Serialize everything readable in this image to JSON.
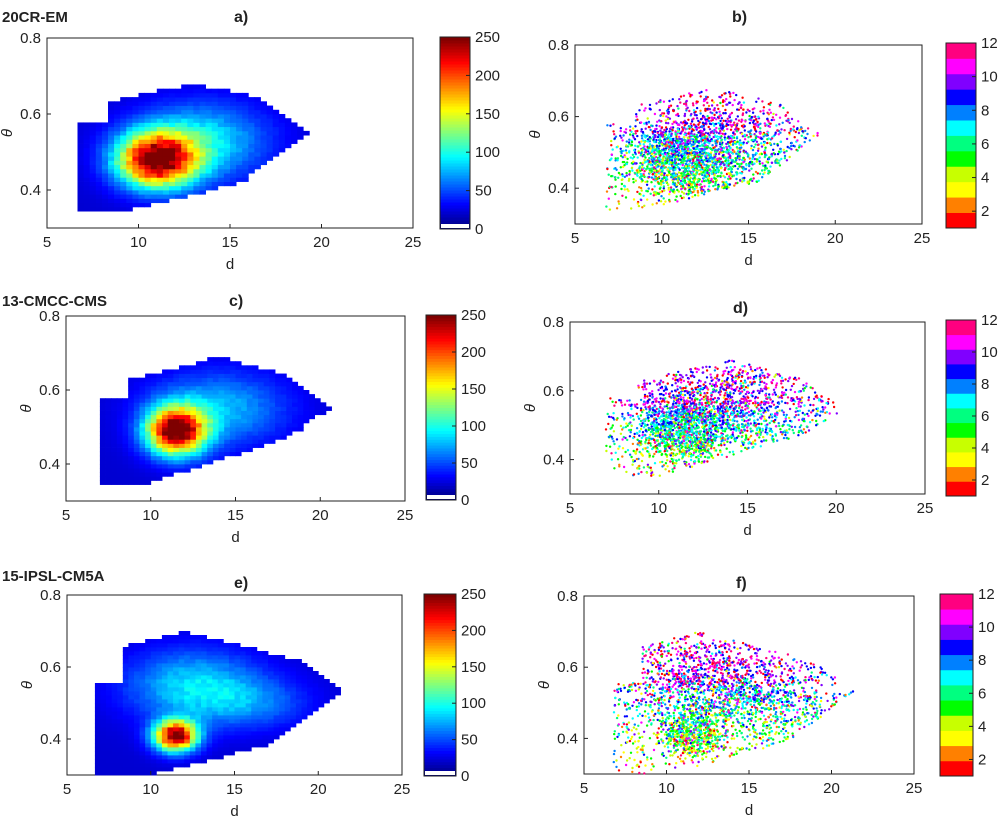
{
  "colors": {
    "cmap_heat": [
      "#00007F",
      "#0000FF",
      "#007FFF",
      "#00FFFF",
      "#7FFF7F",
      "#FFFF00",
      "#FF7F00",
      "#FF0000",
      "#7F0000"
    ],
    "cmap_month": [
      "#FF0000",
      "#FF8000",
      "#FFFF00",
      "#C8FF00",
      "#00FF00",
      "#00FF80",
      "#00FFFF",
      "#0080FF",
      "#0000FF",
      "#8000FF",
      "#FF00FF",
      "#FF0080"
    ]
  },
  "rows": [
    {
      "model_label": "20CR-EM",
      "density_peak": [
        11,
        0.48
      ]
    },
    {
      "model_label": "13-CMCC-CMS",
      "density_peak": [
        11.5,
        0.49
      ]
    },
    {
      "model_label": "15-IPSL-CM5A",
      "density_peak": [
        11.5,
        0.41
      ]
    }
  ],
  "chart_data": [
    {
      "id": "a",
      "panel_label": "a)",
      "type": "heatmap",
      "xlabel": "d",
      "ylabel": "θ",
      "xlim": [
        5,
        25
      ],
      "ylim": [
        0.3,
        0.8
      ],
      "xticks": [
        "5",
        "10",
        "15",
        "20",
        "25"
      ],
      "yticks": [
        "0.4",
        "0.6",
        "0.8"
      ],
      "colorbar": {
        "range": [
          0,
          250
        ],
        "ticks": [
          "0",
          "50",
          "100",
          "150",
          "200",
          "250"
        ]
      },
      "density_peak_count": 240
    },
    {
      "id": "b",
      "panel_label": "b)",
      "type": "scatter",
      "xlabel": "d",
      "ylabel": "θ",
      "xlim": [
        5,
        25
      ],
      "ylim": [
        0.3,
        0.8
      ],
      "xticks": [
        "5",
        "10",
        "15",
        "20",
        "25"
      ],
      "yticks": [
        "0.4",
        "0.6",
        "0.8"
      ],
      "colorbar": {
        "range": [
          1,
          12
        ],
        "ticks": [
          "2",
          "4",
          "6",
          "8",
          "10",
          "12"
        ]
      }
    },
    {
      "id": "c",
      "panel_label": "c)",
      "type": "heatmap",
      "xlabel": "d",
      "ylabel": "θ",
      "xlim": [
        5,
        25
      ],
      "ylim": [
        0.3,
        0.8
      ],
      "xticks": [
        "5",
        "10",
        "15",
        "20",
        "25"
      ],
      "yticks": [
        "0.4",
        "0.6",
        "0.8"
      ],
      "colorbar": {
        "range": [
          0,
          250
        ],
        "ticks": [
          "0",
          "50",
          "100",
          "150",
          "200",
          "250"
        ]
      },
      "density_peak_count": 250
    },
    {
      "id": "d",
      "panel_label": "d)",
      "type": "scatter",
      "xlabel": "d",
      "ylabel": "θ",
      "xlim": [
        5,
        25
      ],
      "ylim": [
        0.3,
        0.8
      ],
      "xticks": [
        "5",
        "10",
        "15",
        "20",
        "25"
      ],
      "yticks": [
        "0.4",
        "0.6",
        "0.8"
      ],
      "colorbar": {
        "range": [
          1,
          12
        ],
        "ticks": [
          "2",
          "4",
          "6",
          "8",
          "10",
          "12"
        ]
      }
    },
    {
      "id": "e",
      "panel_label": "e)",
      "type": "heatmap",
      "xlabel": "d",
      "ylabel": "θ",
      "xlim": [
        5,
        25
      ],
      "ylim": [
        0.3,
        0.8
      ],
      "xticks": [
        "5",
        "10",
        "15",
        "20",
        "25"
      ],
      "yticks": [
        "0.4",
        "0.6",
        "0.8"
      ],
      "colorbar": {
        "range": [
          0,
          250
        ],
        "ticks": [
          "0",
          "50",
          "100",
          "150",
          "200",
          "250"
        ]
      },
      "density_peak_count": 240
    },
    {
      "id": "f",
      "panel_label": "f)",
      "type": "scatter",
      "xlabel": "d",
      "ylabel": "θ",
      "xlim": [
        5,
        25
      ],
      "ylim": [
        0.3,
        0.8
      ],
      "xticks": [
        "5",
        "10",
        "15",
        "20",
        "25"
      ],
      "yticks": [
        "0.4",
        "0.6",
        "0.8"
      ],
      "colorbar": {
        "range": [
          1,
          12
        ],
        "ticks": [
          "2",
          "4",
          "6",
          "8",
          "10",
          "12"
        ]
      }
    }
  ]
}
